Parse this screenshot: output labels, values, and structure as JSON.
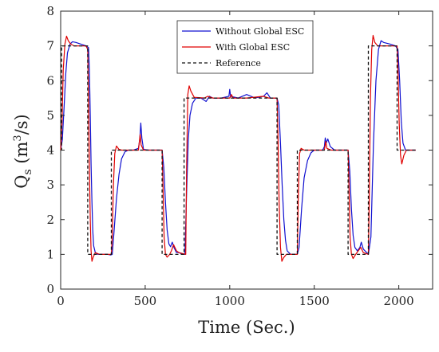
{
  "chart_data": {
    "type": "line",
    "xlabel": "Time (Sec.)",
    "ylabel_main": "Q",
    "ylabel_sub": "s",
    "ylabel_unit_open": " (m",
    "ylabel_unit_sup": "3",
    "ylabel_unit_close": "/s)",
    "xlim": [
      0,
      2200
    ],
    "ylim": [
      0,
      8
    ],
    "xticks": [
      0,
      500,
      1000,
      1500,
      2000
    ],
    "yticks": [
      0,
      1,
      2,
      3,
      4,
      5,
      6,
      7,
      8
    ],
    "legend_position": "top-center",
    "series": [
      {
        "name": "Without Global ESC",
        "color": "#1010d0",
        "style": "solid",
        "points": [
          [
            0,
            4
          ],
          [
            10,
            4.3
          ],
          [
            20,
            5.2
          ],
          [
            30,
            6.2
          ],
          [
            40,
            6.8
          ],
          [
            55,
            7.05
          ],
          [
            70,
            7.12
          ],
          [
            90,
            7.1
          ],
          [
            120,
            7.05
          ],
          [
            150,
            7
          ],
          [
            165,
            6.95
          ],
          [
            170,
            6.3
          ],
          [
            175,
            5
          ],
          [
            180,
            3.6
          ],
          [
            185,
            2.5
          ],
          [
            190,
            1.7
          ],
          [
            195,
            1.25
          ],
          [
            205,
            1.05
          ],
          [
            220,
            1.0
          ],
          [
            250,
            1.0
          ],
          [
            280,
            1.0
          ],
          [
            295,
            0.98
          ],
          [
            305,
            1.0
          ],
          [
            315,
            1.6
          ],
          [
            330,
            2.6
          ],
          [
            345,
            3.3
          ],
          [
            360,
            3.75
          ],
          [
            380,
            3.95
          ],
          [
            400,
            4.0
          ],
          [
            430,
            4.0
          ],
          [
            460,
            4.05
          ],
          [
            468,
            4.3
          ],
          [
            474,
            4.78
          ],
          [
            480,
            4.35
          ],
          [
            490,
            4.02
          ],
          [
            520,
            4.0
          ],
          [
            600,
            4.0
          ],
          [
            610,
            3.5
          ],
          [
            620,
            2.5
          ],
          [
            630,
            1.7
          ],
          [
            640,
            1.3
          ],
          [
            650,
            1.22
          ],
          [
            660,
            1.35
          ],
          [
            670,
            1.2
          ],
          [
            685,
            1.05
          ],
          [
            700,
            1.05
          ],
          [
            720,
            1.0
          ],
          [
            735,
            1.0
          ],
          [
            745,
            2.8
          ],
          [
            755,
            4.3
          ],
          [
            765,
            5.0
          ],
          [
            780,
            5.35
          ],
          [
            800,
            5.5
          ],
          [
            830,
            5.5
          ],
          [
            860,
            5.4
          ],
          [
            880,
            5.55
          ],
          [
            900,
            5.5
          ],
          [
            950,
            5.5
          ],
          [
            995,
            5.55
          ],
          [
            1000,
            5.75
          ],
          [
            1005,
            5.55
          ],
          [
            1050,
            5.5
          ],
          [
            1100,
            5.6
          ],
          [
            1150,
            5.5
          ],
          [
            1200,
            5.55
          ],
          [
            1220,
            5.65
          ],
          [
            1240,
            5.5
          ],
          [
            1280,
            5.5
          ],
          [
            1290,
            5.3
          ],
          [
            1300,
            4.2
          ],
          [
            1310,
            3.0
          ],
          [
            1320,
            2.0
          ],
          [
            1330,
            1.4
          ],
          [
            1340,
            1.1
          ],
          [
            1360,
            1.0
          ],
          [
            1400,
            1.0
          ],
          [
            1410,
            1.2
          ],
          [
            1425,
            2.3
          ],
          [
            1440,
            3.2
          ],
          [
            1460,
            3.7
          ],
          [
            1480,
            3.92
          ],
          [
            1500,
            4.0
          ],
          [
            1550,
            4.0
          ],
          [
            1560,
            4.1
          ],
          [
            1565,
            4.35
          ],
          [
            1570,
            4.2
          ],
          [
            1580,
            4.32
          ],
          [
            1595,
            4.1
          ],
          [
            1620,
            4.0
          ],
          [
            1700,
            4.0
          ],
          [
            1710,
            3.4
          ],
          [
            1720,
            2.3
          ],
          [
            1730,
            1.55
          ],
          [
            1740,
            1.2
          ],
          [
            1755,
            1.1
          ],
          [
            1770,
            1.2
          ],
          [
            1778,
            1.35
          ],
          [
            1790,
            1.15
          ],
          [
            1810,
            1.05
          ],
          [
            1820,
            1.0
          ],
          [
            1835,
            1.5
          ],
          [
            1850,
            4.2
          ],
          [
            1865,
            6.0
          ],
          [
            1880,
            6.9
          ],
          [
            1895,
            7.15
          ],
          [
            1910,
            7.1
          ],
          [
            1950,
            7.05
          ],
          [
            1980,
            7.0
          ],
          [
            1995,
            6.9
          ],
          [
            2005,
            6.0
          ],
          [
            2015,
            4.8
          ],
          [
            2025,
            4.2
          ],
          [
            2040,
            4.0
          ],
          [
            2060,
            4.0
          ],
          [
            2100,
            4.0
          ]
        ]
      },
      {
        "name": "With Global ESC",
        "color": "#e00000",
        "style": "solid",
        "points": [
          [
            0,
            4
          ],
          [
            8,
            4.8
          ],
          [
            15,
            6.3
          ],
          [
            25,
            7.05
          ],
          [
            35,
            7.28
          ],
          [
            45,
            7.15
          ],
          [
            60,
            7.05
          ],
          [
            80,
            7.0
          ],
          [
            150,
            7.0
          ],
          [
            160,
            6.9
          ],
          [
            165,
            5.5
          ],
          [
            170,
            3.5
          ],
          [
            175,
            2.0
          ],
          [
            180,
            1.1
          ],
          [
            185,
            0.8
          ],
          [
            192,
            0.92
          ],
          [
            205,
            1.05
          ],
          [
            230,
            1.0
          ],
          [
            300,
            1.0
          ],
          [
            305,
            1.5
          ],
          [
            312,
            3.0
          ],
          [
            320,
            3.9
          ],
          [
            330,
            4.12
          ],
          [
            345,
            4.02
          ],
          [
            360,
            4.0
          ],
          [
            460,
            4.0
          ],
          [
            470,
            4.45
          ],
          [
            476,
            4.15
          ],
          [
            490,
            4.0
          ],
          [
            600,
            4.0
          ],
          [
            605,
            3.0
          ],
          [
            612,
            1.5
          ],
          [
            620,
            1.0
          ],
          [
            630,
            0.92
          ],
          [
            645,
            1.0
          ],
          [
            655,
            1.1
          ],
          [
            668,
            1.28
          ],
          [
            685,
            1.1
          ],
          [
            700,
            1.05
          ],
          [
            740,
            1.0
          ],
          [
            745,
            3.5
          ],
          [
            752,
            5.6
          ],
          [
            760,
            5.85
          ],
          [
            770,
            5.7
          ],
          [
            790,
            5.52
          ],
          [
            850,
            5.5
          ],
          [
            870,
            5.55
          ],
          [
            900,
            5.5
          ],
          [
            1000,
            5.5
          ],
          [
            1010,
            5.6
          ],
          [
            1020,
            5.5
          ],
          [
            1100,
            5.5
          ],
          [
            1200,
            5.55
          ],
          [
            1230,
            5.5
          ],
          [
            1280,
            5.5
          ],
          [
            1285,
            4.5
          ],
          [
            1292,
            2.5
          ],
          [
            1300,
            1.2
          ],
          [
            1308,
            0.8
          ],
          [
            1318,
            0.9
          ],
          [
            1335,
            1.0
          ],
          [
            1400,
            1.0
          ],
          [
            1405,
            2.5
          ],
          [
            1413,
            3.9
          ],
          [
            1422,
            4.05
          ],
          [
            1440,
            4.0
          ],
          [
            1560,
            4.0
          ],
          [
            1568,
            4.25
          ],
          [
            1575,
            4.05
          ],
          [
            1600,
            4.0
          ],
          [
            1700,
            4.0
          ],
          [
            1705,
            3.0
          ],
          [
            1712,
            1.5
          ],
          [
            1720,
            1.0
          ],
          [
            1730,
            0.88
          ],
          [
            1745,
            1.0
          ],
          [
            1760,
            1.1
          ],
          [
            1775,
            1.2
          ],
          [
            1790,
            1.05
          ],
          [
            1820,
            1.0
          ],
          [
            1825,
            2.5
          ],
          [
            1832,
            5.5
          ],
          [
            1840,
            6.9
          ],
          [
            1848,
            7.3
          ],
          [
            1858,
            7.1
          ],
          [
            1875,
            7.0
          ],
          [
            1990,
            7.0
          ],
          [
            1995,
            6.3
          ],
          [
            2002,
            4.8
          ],
          [
            2010,
            3.85
          ],
          [
            2018,
            3.6
          ],
          [
            2030,
            3.85
          ],
          [
            2045,
            4.0
          ],
          [
            2100,
            4.0
          ]
        ]
      },
      {
        "name": "Reference",
        "color": "#111111",
        "style": "dashed",
        "points": [
          [
            0,
            4
          ],
          [
            5,
            4
          ],
          [
            5,
            7
          ],
          [
            160,
            7
          ],
          [
            160,
            1
          ],
          [
            300,
            1
          ],
          [
            300,
            4
          ],
          [
            600,
            4
          ],
          [
            600,
            1
          ],
          [
            730,
            1
          ],
          [
            730,
            5.5
          ],
          [
            1280,
            5.5
          ],
          [
            1280,
            1
          ],
          [
            1400,
            1
          ],
          [
            1400,
            4
          ],
          [
            1700,
            4
          ],
          [
            1700,
            1
          ],
          [
            1820,
            1
          ],
          [
            1820,
            7
          ],
          [
            1990,
            7
          ],
          [
            1990,
            4
          ],
          [
            2100,
            4
          ]
        ]
      }
    ]
  }
}
